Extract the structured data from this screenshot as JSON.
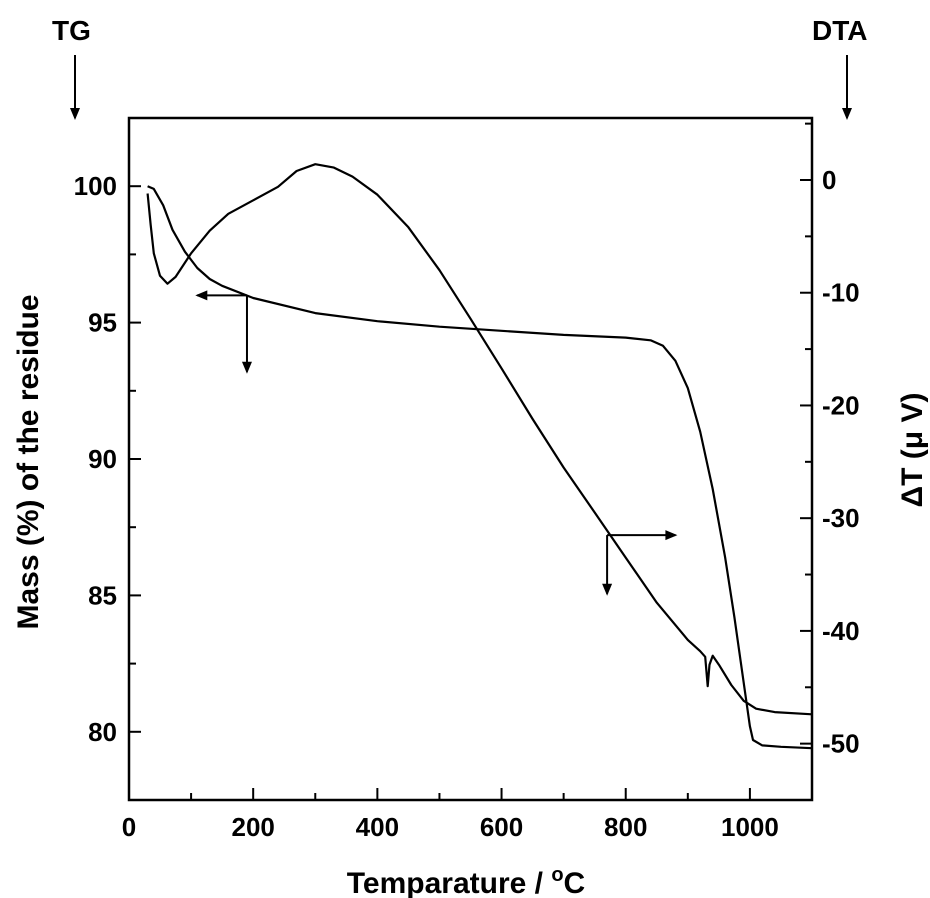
{
  "chart_data": {
    "type": "line",
    "title": "",
    "xlabel": "Temparature / °C",
    "xlabel_main": "Temparature / ",
    "xlabel_sup": "o",
    "xlabel_unit": "C",
    "ylabel_left": "Mass (%) of the residue",
    "ylabel_right": "ΔT (μ V)",
    "corner_left": "TG",
    "corner_right": "DTA",
    "xlim": [
      0,
      1100
    ],
    "ylim_left": [
      77.5,
      102.5
    ],
    "ylim_right": [
      -55,
      5.5
    ],
    "x_ticks": [
      0,
      200,
      400,
      600,
      800,
      1000
    ],
    "x_tick_labels": [
      "0",
      "200",
      "400",
      "600",
      "800",
      "1000"
    ],
    "y_left_ticks": [
      80,
      85,
      90,
      95,
      100
    ],
    "y_left_tick_labels": [
      "80",
      "85",
      "90",
      "95",
      "100"
    ],
    "y_right_ticks": [
      -50,
      -40,
      -30,
      -20,
      -10,
      0
    ],
    "y_right_tick_labels": [
      "-50",
      "-40",
      "-30",
      "-20",
      "-10",
      "0"
    ],
    "grid": false,
    "series": [
      {
        "axis": "left",
        "points": [
          [
            30,
            100
          ],
          [
            40,
            99.9
          ],
          [
            55,
            99.3
          ],
          [
            70,
            98.4
          ],
          [
            90,
            97.6
          ],
          [
            110,
            97.0
          ],
          [
            130,
            96.6
          ],
          [
            150,
            96.35
          ],
          [
            200,
            95.9
          ],
          [
            300,
            95.35
          ],
          [
            400,
            95.05
          ],
          [
            500,
            94.85
          ],
          [
            600,
            94.7
          ],
          [
            700,
            94.55
          ],
          [
            800,
            94.45
          ],
          [
            840,
            94.35
          ],
          [
            860,
            94.15
          ],
          [
            880,
            93.6
          ],
          [
            900,
            92.6
          ],
          [
            920,
            91.0
          ],
          [
            940,
            88.9
          ],
          [
            960,
            86.4
          ],
          [
            975,
            84.2
          ],
          [
            985,
            82.6
          ],
          [
            995,
            81.0
          ],
          [
            1000,
            80.2
          ],
          [
            1005,
            79.7
          ],
          [
            1020,
            79.5
          ],
          [
            1050,
            79.45
          ],
          [
            1100,
            79.4
          ]
        ]
      },
      {
        "axis": "right",
        "points": [
          [
            30,
            -1.2
          ],
          [
            35,
            -4.0
          ],
          [
            40,
            -6.5
          ],
          [
            50,
            -8.5
          ],
          [
            62,
            -9.2
          ],
          [
            75,
            -8.6
          ],
          [
            100,
            -6.5
          ],
          [
            130,
            -4.5
          ],
          [
            160,
            -3.0
          ],
          [
            200,
            -1.8
          ],
          [
            240,
            -0.6
          ],
          [
            270,
            0.8
          ],
          [
            300,
            1.4
          ],
          [
            330,
            1.1
          ],
          [
            360,
            0.3
          ],
          [
            400,
            -1.3
          ],
          [
            450,
            -4.2
          ],
          [
            500,
            -8.0
          ],
          [
            550,
            -12.3
          ],
          [
            600,
            -16.7
          ],
          [
            650,
            -21.2
          ],
          [
            700,
            -25.5
          ],
          [
            750,
            -29.5
          ],
          [
            800,
            -33.5
          ],
          [
            850,
            -37.5
          ],
          [
            900,
            -40.8
          ],
          [
            920,
            -41.8
          ],
          [
            928,
            -42.3
          ],
          [
            932,
            -44.9
          ],
          [
            935,
            -43.0
          ],
          [
            940,
            -42.2
          ],
          [
            950,
            -43.0
          ],
          [
            970,
            -44.8
          ],
          [
            990,
            -46.2
          ],
          [
            1010,
            -46.9
          ],
          [
            1040,
            -47.2
          ],
          [
            1100,
            -47.4
          ]
        ]
      }
    ],
    "annotations": [
      {
        "label": "TG arrow",
        "points_to": "left",
        "anchor": [
          190,
          96.0
        ],
        "target_x": 110,
        "drop_to": 93.2
      },
      {
        "label": "DTA arrow",
        "points_to": "right",
        "anchor": [
          770,
          -31.5
        ],
        "target_x": 880,
        "drop_to": -36.7
      }
    ]
  }
}
